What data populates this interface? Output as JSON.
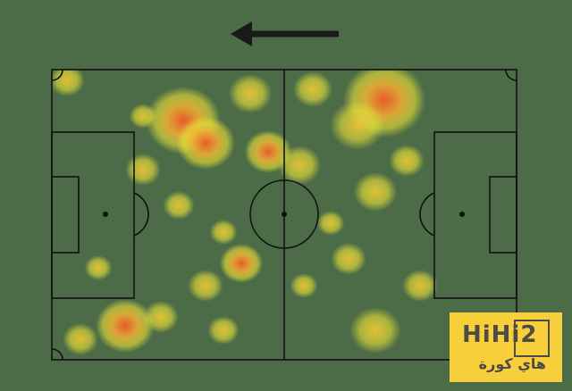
{
  "attack_direction": "left",
  "colors": {
    "background": "#4b6c46",
    "lines": "#111111",
    "heat_low": "#e8e23a",
    "heat_high": "#f05a28"
  },
  "logo": {
    "text": "HiHi2",
    "arabic": "هاي كورة",
    "color": "#f7cf3b"
  }
}
